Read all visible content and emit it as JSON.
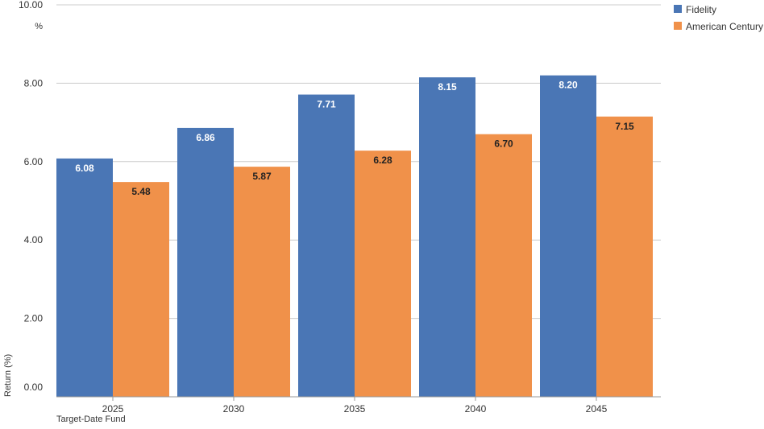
{
  "chart_data": {
    "type": "bar",
    "categories": [
      "2025",
      "2030",
      "2035",
      "2040",
      "2045"
    ],
    "series": [
      {
        "name": "Fidelity",
        "values": [
          6.08,
          6.86,
          7.71,
          8.15,
          8.2
        ],
        "color": "#4A76B5",
        "label_color": "#ffffff"
      },
      {
        "name": "American Century",
        "values": [
          5.48,
          5.87,
          6.28,
          6.7,
          7.15
        ],
        "color": "#F0914A",
        "label_color": "#222222"
      }
    ],
    "xlabel": "Target-Date Fund",
    "ylabel": "Return (%)",
    "y_unit": "%",
    "ylim": [
      0,
      10
    ],
    "yticks": [
      "0.00",
      "2.00",
      "4.00",
      "6.00",
      "8.00",
      "10.00"
    ],
    "grid": true,
    "legend_position": "top-right"
  }
}
